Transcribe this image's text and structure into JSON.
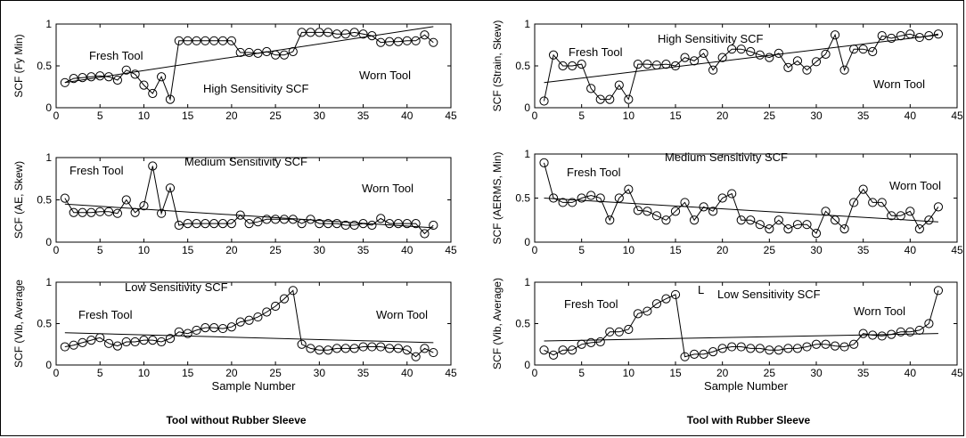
{
  "figure": {
    "left_caption": "Tool without Rubber Sleeve",
    "right_caption": "Tool with Rubber Sleeve"
  },
  "chart_data": [
    {
      "type": "line",
      "ylabel": "SCF (Fy  Min)",
      "xlabel": "",
      "xlim": [
        0,
        45
      ],
      "ylim": [
        0,
        1
      ],
      "xticks": [
        0,
        5,
        10,
        15,
        20,
        25,
        30,
        35,
        40,
        45
      ],
      "yticks": [
        0,
        0.5,
        1
      ],
      "annotations": [
        "Fresh Tool",
        "High  Sensitivity SCF",
        "Worn Tool"
      ],
      "series": [
        {
          "x": [
            1,
            2,
            3,
            4,
            5,
            6,
            7,
            8,
            9,
            10,
            11,
            12,
            13,
            14,
            15,
            16,
            17,
            18,
            19,
            20,
            21,
            22,
            23,
            24,
            25,
            26,
            27,
            28,
            29,
            30,
            31,
            32,
            33,
            34,
            35,
            36,
            37,
            38,
            39,
            40,
            41,
            42,
            43
          ],
          "y": [
            0.3,
            0.35,
            0.36,
            0.37,
            0.38,
            0.37,
            0.33,
            0.45,
            0.4,
            0.27,
            0.17,
            0.37,
            0.1,
            0.8,
            0.8,
            0.8,
            0.8,
            0.8,
            0.8,
            0.8,
            0.66,
            0.66,
            0.65,
            0.67,
            0.63,
            0.63,
            0.67,
            0.9,
            0.9,
            0.9,
            0.9,
            0.88,
            0.88,
            0.9,
            0.88,
            0.86,
            0.78,
            0.79,
            0.79,
            0.8,
            0.8,
            0.87,
            0.78
          ]
        },
        {
          "x": [
            1,
            43
          ],
          "y": [
            0.3,
            0.97
          ]
        }
      ]
    },
    {
      "type": "line",
      "ylabel": "SCF (AE,  Skew)",
      "xlabel": "",
      "xlim": [
        0,
        45
      ],
      "ylim": [
        0,
        1
      ],
      "xticks": [
        0,
        5,
        10,
        15,
        20,
        25,
        30,
        35,
        40,
        45
      ],
      "yticks": [
        0,
        0.5,
        1
      ],
      "annotations": [
        "Fresh Tool",
        "Medium Sensitivity SCF",
        "Worn Tool"
      ],
      "series": [
        {
          "x": [
            1,
            2,
            3,
            4,
            5,
            6,
            7,
            8,
            9,
            10,
            11,
            12,
            13,
            14,
            15,
            16,
            17,
            18,
            19,
            20,
            21,
            22,
            23,
            24,
            25,
            26,
            27,
            28,
            29,
            30,
            31,
            32,
            33,
            34,
            35,
            36,
            37,
            38,
            39,
            40,
            41,
            42,
            43
          ],
          "y": [
            0.52,
            0.35,
            0.35,
            0.35,
            0.36,
            0.36,
            0.34,
            0.5,
            0.35,
            0.43,
            0.9,
            0.34,
            0.64,
            0.2,
            0.22,
            0.22,
            0.22,
            0.22,
            0.22,
            0.22,
            0.32,
            0.22,
            0.24,
            0.27,
            0.27,
            0.27,
            0.27,
            0.22,
            0.27,
            0.22,
            0.22,
            0.22,
            0.2,
            0.2,
            0.22,
            0.2,
            0.28,
            0.22,
            0.22,
            0.22,
            0.22,
            0.1,
            0.2
          ]
        },
        {
          "x": [
            1,
            43
          ],
          "y": [
            0.45,
            0.17
          ]
        }
      ]
    },
    {
      "type": "line",
      "ylabel": "SCF (Vib,  Average",
      "xlabel": "Sample Number",
      "xlim": [
        0,
        45
      ],
      "ylim": [
        0,
        1
      ],
      "xticks": [
        0,
        5,
        10,
        15,
        20,
        25,
        30,
        35,
        40,
        45
      ],
      "yticks": [
        0,
        0.5,
        1
      ],
      "annotations": [
        "Low Sensitivity SCF",
        "Fresh Tool",
        "Worn Tool"
      ],
      "series": [
        {
          "x": [
            1,
            2,
            3,
            4,
            5,
            6,
            7,
            8,
            9,
            10,
            11,
            12,
            13,
            14,
            15,
            16,
            17,
            18,
            19,
            20,
            21,
            22,
            23,
            24,
            25,
            26,
            27,
            28,
            29,
            30,
            31,
            32,
            33,
            34,
            35,
            36,
            37,
            38,
            39,
            40,
            41,
            42,
            43
          ],
          "y": [
            0.22,
            0.24,
            0.27,
            0.3,
            0.33,
            0.26,
            0.23,
            0.28,
            0.28,
            0.3,
            0.3,
            0.28,
            0.32,
            0.4,
            0.38,
            0.42,
            0.45,
            0.45,
            0.44,
            0.46,
            0.52,
            0.54,
            0.58,
            0.64,
            0.71,
            0.8,
            0.9,
            0.25,
            0.2,
            0.18,
            0.18,
            0.2,
            0.2,
            0.2,
            0.22,
            0.22,
            0.22,
            0.2,
            0.2,
            0.18,
            0.1,
            0.2,
            0.15
          ]
        },
        {
          "x": [
            1,
            43
          ],
          "y": [
            0.39,
            0.27
          ]
        }
      ]
    },
    {
      "type": "line",
      "ylabel": "SCF (Strain, Skew)",
      "xlabel": "",
      "xlim": [
        0,
        45
      ],
      "ylim": [
        0,
        1
      ],
      "xticks": [
        0,
        5,
        10,
        15,
        20,
        25,
        30,
        35,
        40,
        45
      ],
      "yticks": [
        0,
        0.5,
        1
      ],
      "annotations": [
        "Fresh Tool",
        "High  Sensitivity SCF",
        "Worn Tool"
      ],
      "series": [
        {
          "x": [
            1,
            2,
            3,
            4,
            5,
            6,
            7,
            8,
            9,
            10,
            11,
            12,
            13,
            14,
            15,
            16,
            17,
            18,
            19,
            20,
            21,
            22,
            23,
            24,
            25,
            26,
            27,
            28,
            29,
            30,
            31,
            32,
            33,
            34,
            35,
            36,
            37,
            38,
            39,
            40,
            41,
            42,
            43
          ],
          "y": [
            0.08,
            0.63,
            0.5,
            0.5,
            0.52,
            0.23,
            0.1,
            0.1,
            0.27,
            0.1,
            0.52,
            0.52,
            0.51,
            0.52,
            0.5,
            0.6,
            0.56,
            0.65,
            0.45,
            0.6,
            0.7,
            0.7,
            0.67,
            0.63,
            0.6,
            0.65,
            0.48,
            0.56,
            0.45,
            0.55,
            0.64,
            0.87,
            0.45,
            0.7,
            0.7,
            0.67,
            0.86,
            0.83,
            0.86,
            0.88,
            0.84,
            0.86,
            0.88
          ]
        },
        {
          "x": [
            1,
            43
          ],
          "y": [
            0.3,
            0.87
          ]
        }
      ]
    },
    {
      "type": "line",
      "ylabel": "SCF (AERMS,  Min)",
      "xlabel": "",
      "xlim": [
        0,
        45
      ],
      "ylim": [
        0,
        1
      ],
      "xticks": [
        0,
        5,
        10,
        15,
        20,
        25,
        30,
        35,
        40,
        45
      ],
      "yticks": [
        0,
        0.5,
        1
      ],
      "annotations": [
        "Fresh Tool",
        "Medium Sensitivity SCF",
        "Worn Tool"
      ],
      "series": [
        {
          "x": [
            1,
            2,
            3,
            4,
            5,
            6,
            7,
            8,
            9,
            10,
            11,
            12,
            13,
            14,
            15,
            16,
            17,
            18,
            19,
            20,
            21,
            22,
            23,
            24,
            25,
            26,
            27,
            28,
            29,
            30,
            31,
            32,
            33,
            34,
            35,
            36,
            37,
            38,
            39,
            40,
            41,
            42,
            43
          ],
          "y": [
            0.9,
            0.5,
            0.45,
            0.45,
            0.5,
            0.53,
            0.5,
            0.25,
            0.5,
            0.6,
            0.36,
            0.35,
            0.3,
            0.25,
            0.35,
            0.45,
            0.25,
            0.4,
            0.35,
            0.5,
            0.55,
            0.25,
            0.25,
            0.2,
            0.15,
            0.25,
            0.15,
            0.2,
            0.2,
            0.1,
            0.35,
            0.25,
            0.15,
            0.45,
            0.6,
            0.45,
            0.45,
            0.3,
            0.3,
            0.35,
            0.15,
            0.25,
            0.4
          ]
        },
        {
          "x": [
            1,
            43
          ],
          "y": [
            0.5,
            0.23
          ]
        }
      ]
    },
    {
      "type": "line",
      "ylabel": "SCF (Vib,  Average)",
      "xlabel": "Sample Number",
      "xlim": [
        0,
        45
      ],
      "ylim": [
        0,
        1
      ],
      "xticks": [
        0,
        5,
        10,
        15,
        20,
        25,
        30,
        35,
        40,
        45
      ],
      "yticks": [
        0,
        0.5,
        1
      ],
      "annotations": [
        "Fresh Tool",
        "L",
        "Low Sensitivity SCF",
        "Worn Tool"
      ],
      "series": [
        {
          "x": [
            1,
            2,
            3,
            4,
            5,
            6,
            7,
            8,
            9,
            10,
            11,
            12,
            13,
            14,
            15,
            16,
            17,
            18,
            19,
            20,
            21,
            22,
            23,
            24,
            25,
            26,
            27,
            28,
            29,
            30,
            31,
            32,
            33,
            34,
            35,
            36,
            37,
            38,
            39,
            40,
            41,
            42,
            43
          ],
          "y": [
            0.18,
            0.12,
            0.18,
            0.18,
            0.25,
            0.27,
            0.28,
            0.4,
            0.4,
            0.43,
            0.62,
            0.65,
            0.74,
            0.8,
            0.85,
            0.1,
            0.13,
            0.13,
            0.16,
            0.2,
            0.22,
            0.22,
            0.2,
            0.2,
            0.18,
            0.18,
            0.2,
            0.2,
            0.22,
            0.25,
            0.25,
            0.23,
            0.22,
            0.25,
            0.38,
            0.36,
            0.35,
            0.37,
            0.4,
            0.4,
            0.42,
            0.5,
            0.9
          ]
        },
        {
          "x": [
            1,
            43
          ],
          "y": [
            0.29,
            0.38
          ]
        }
      ]
    }
  ]
}
